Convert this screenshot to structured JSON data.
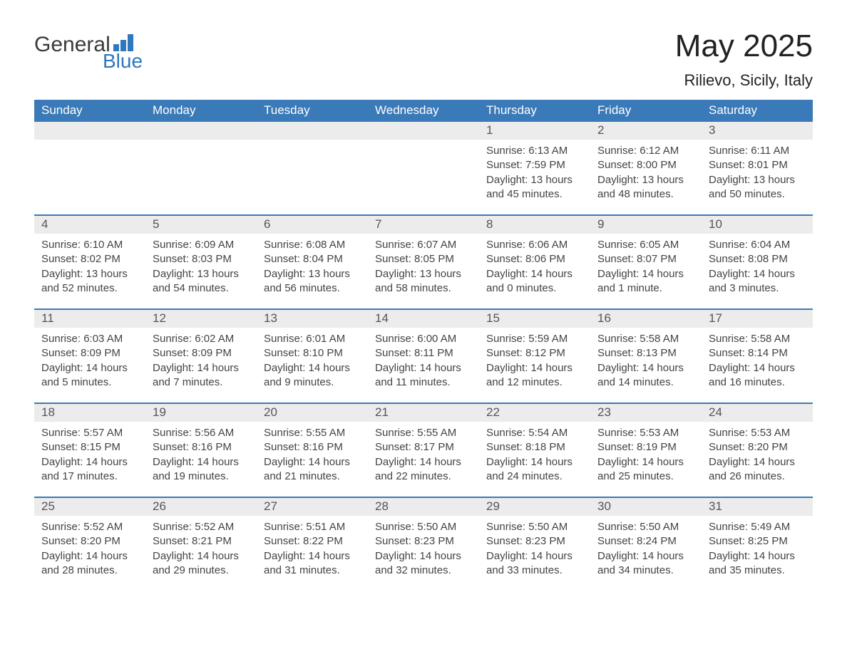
{
  "logo": {
    "text_general": "General",
    "text_blue": "Blue",
    "icon_color": "#2f78bd"
  },
  "header": {
    "title": "May 2025",
    "location": "Rilievo, Sicily, Italy"
  },
  "styling": {
    "header_bg": "#3a7ab8",
    "header_text_color": "#ffffff",
    "daynum_bg": "#ececec",
    "daynum_text_color": "#555555",
    "body_text_color": "#444444",
    "row_border_color": "#3a7ab8",
    "background_color": "#ffffff",
    "title_fontsize": 44,
    "location_fontsize": 22,
    "weekday_fontsize": 17,
    "daynum_fontsize": 17,
    "body_fontsize": 15,
    "cell_min_height": 130,
    "columns": 7
  },
  "weekdays": [
    "Sunday",
    "Monday",
    "Tuesday",
    "Wednesday",
    "Thursday",
    "Friday",
    "Saturday"
  ],
  "weeks": [
    [
      {
        "day": "",
        "sunrise": "",
        "sunset": "",
        "daylight": ""
      },
      {
        "day": "",
        "sunrise": "",
        "sunset": "",
        "daylight": ""
      },
      {
        "day": "",
        "sunrise": "",
        "sunset": "",
        "daylight": ""
      },
      {
        "day": "",
        "sunrise": "",
        "sunset": "",
        "daylight": ""
      },
      {
        "day": "1",
        "sunrise": "Sunrise: 6:13 AM",
        "sunset": "Sunset: 7:59 PM",
        "daylight": "Daylight: 13 hours and 45 minutes."
      },
      {
        "day": "2",
        "sunrise": "Sunrise: 6:12 AM",
        "sunset": "Sunset: 8:00 PM",
        "daylight": "Daylight: 13 hours and 48 minutes."
      },
      {
        "day": "3",
        "sunrise": "Sunrise: 6:11 AM",
        "sunset": "Sunset: 8:01 PM",
        "daylight": "Daylight: 13 hours and 50 minutes."
      }
    ],
    [
      {
        "day": "4",
        "sunrise": "Sunrise: 6:10 AM",
        "sunset": "Sunset: 8:02 PM",
        "daylight": "Daylight: 13 hours and 52 minutes."
      },
      {
        "day": "5",
        "sunrise": "Sunrise: 6:09 AM",
        "sunset": "Sunset: 8:03 PM",
        "daylight": "Daylight: 13 hours and 54 minutes."
      },
      {
        "day": "6",
        "sunrise": "Sunrise: 6:08 AM",
        "sunset": "Sunset: 8:04 PM",
        "daylight": "Daylight: 13 hours and 56 minutes."
      },
      {
        "day": "7",
        "sunrise": "Sunrise: 6:07 AM",
        "sunset": "Sunset: 8:05 PM",
        "daylight": "Daylight: 13 hours and 58 minutes."
      },
      {
        "day": "8",
        "sunrise": "Sunrise: 6:06 AM",
        "sunset": "Sunset: 8:06 PM",
        "daylight": "Daylight: 14 hours and 0 minutes."
      },
      {
        "day": "9",
        "sunrise": "Sunrise: 6:05 AM",
        "sunset": "Sunset: 8:07 PM",
        "daylight": "Daylight: 14 hours and 1 minute."
      },
      {
        "day": "10",
        "sunrise": "Sunrise: 6:04 AM",
        "sunset": "Sunset: 8:08 PM",
        "daylight": "Daylight: 14 hours and 3 minutes."
      }
    ],
    [
      {
        "day": "11",
        "sunrise": "Sunrise: 6:03 AM",
        "sunset": "Sunset: 8:09 PM",
        "daylight": "Daylight: 14 hours and 5 minutes."
      },
      {
        "day": "12",
        "sunrise": "Sunrise: 6:02 AM",
        "sunset": "Sunset: 8:09 PM",
        "daylight": "Daylight: 14 hours and 7 minutes."
      },
      {
        "day": "13",
        "sunrise": "Sunrise: 6:01 AM",
        "sunset": "Sunset: 8:10 PM",
        "daylight": "Daylight: 14 hours and 9 minutes."
      },
      {
        "day": "14",
        "sunrise": "Sunrise: 6:00 AM",
        "sunset": "Sunset: 8:11 PM",
        "daylight": "Daylight: 14 hours and 11 minutes."
      },
      {
        "day": "15",
        "sunrise": "Sunrise: 5:59 AM",
        "sunset": "Sunset: 8:12 PM",
        "daylight": "Daylight: 14 hours and 12 minutes."
      },
      {
        "day": "16",
        "sunrise": "Sunrise: 5:58 AM",
        "sunset": "Sunset: 8:13 PM",
        "daylight": "Daylight: 14 hours and 14 minutes."
      },
      {
        "day": "17",
        "sunrise": "Sunrise: 5:58 AM",
        "sunset": "Sunset: 8:14 PM",
        "daylight": "Daylight: 14 hours and 16 minutes."
      }
    ],
    [
      {
        "day": "18",
        "sunrise": "Sunrise: 5:57 AM",
        "sunset": "Sunset: 8:15 PM",
        "daylight": "Daylight: 14 hours and 17 minutes."
      },
      {
        "day": "19",
        "sunrise": "Sunrise: 5:56 AM",
        "sunset": "Sunset: 8:16 PM",
        "daylight": "Daylight: 14 hours and 19 minutes."
      },
      {
        "day": "20",
        "sunrise": "Sunrise: 5:55 AM",
        "sunset": "Sunset: 8:16 PM",
        "daylight": "Daylight: 14 hours and 21 minutes."
      },
      {
        "day": "21",
        "sunrise": "Sunrise: 5:55 AM",
        "sunset": "Sunset: 8:17 PM",
        "daylight": "Daylight: 14 hours and 22 minutes."
      },
      {
        "day": "22",
        "sunrise": "Sunrise: 5:54 AM",
        "sunset": "Sunset: 8:18 PM",
        "daylight": "Daylight: 14 hours and 24 minutes."
      },
      {
        "day": "23",
        "sunrise": "Sunrise: 5:53 AM",
        "sunset": "Sunset: 8:19 PM",
        "daylight": "Daylight: 14 hours and 25 minutes."
      },
      {
        "day": "24",
        "sunrise": "Sunrise: 5:53 AM",
        "sunset": "Sunset: 8:20 PM",
        "daylight": "Daylight: 14 hours and 26 minutes."
      }
    ],
    [
      {
        "day": "25",
        "sunrise": "Sunrise: 5:52 AM",
        "sunset": "Sunset: 8:20 PM",
        "daylight": "Daylight: 14 hours and 28 minutes."
      },
      {
        "day": "26",
        "sunrise": "Sunrise: 5:52 AM",
        "sunset": "Sunset: 8:21 PM",
        "daylight": "Daylight: 14 hours and 29 minutes."
      },
      {
        "day": "27",
        "sunrise": "Sunrise: 5:51 AM",
        "sunset": "Sunset: 8:22 PM",
        "daylight": "Daylight: 14 hours and 31 minutes."
      },
      {
        "day": "28",
        "sunrise": "Sunrise: 5:50 AM",
        "sunset": "Sunset: 8:23 PM",
        "daylight": "Daylight: 14 hours and 32 minutes."
      },
      {
        "day": "29",
        "sunrise": "Sunrise: 5:50 AM",
        "sunset": "Sunset: 8:23 PM",
        "daylight": "Daylight: 14 hours and 33 minutes."
      },
      {
        "day": "30",
        "sunrise": "Sunrise: 5:50 AM",
        "sunset": "Sunset: 8:24 PM",
        "daylight": "Daylight: 14 hours and 34 minutes."
      },
      {
        "day": "31",
        "sunrise": "Sunrise: 5:49 AM",
        "sunset": "Sunset: 8:25 PM",
        "daylight": "Daylight: 14 hours and 35 minutes."
      }
    ]
  ]
}
